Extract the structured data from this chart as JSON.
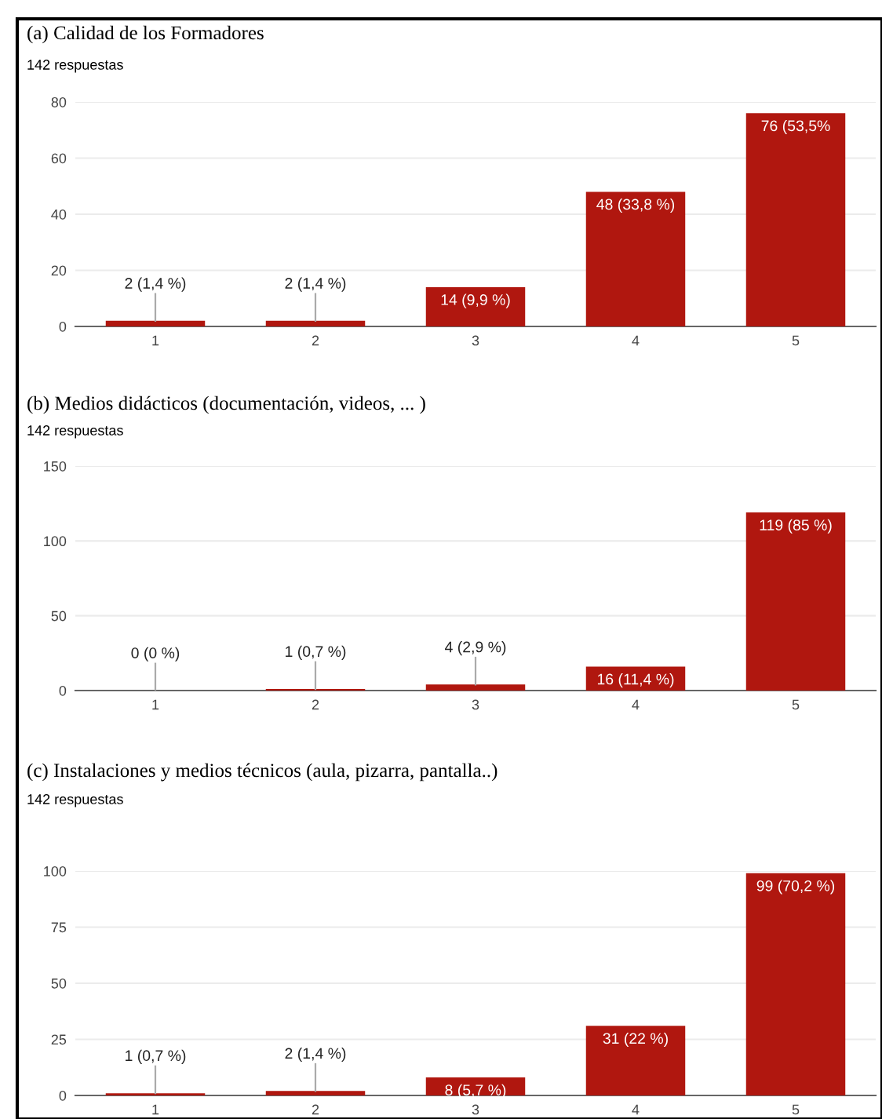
{
  "chart_data": [
    {
      "type": "bar",
      "title": "(a) Calidad de los Formadores",
      "subtitle": "142 respuestas",
      "categories": [
        "1",
        "2",
        "3",
        "4",
        "5"
      ],
      "values": [
        2,
        2,
        14,
        48,
        76
      ],
      "value_labels": [
        "2 (1,4 %)",
        "2 (1,4 %)",
        "14 (9,9 %)",
        "48 (33,8 %)",
        "76 (53,5%"
      ],
      "color": "#b0170f",
      "ylim": [
        0,
        80
      ],
      "yticks": [
        0,
        20,
        40,
        60,
        80
      ],
      "grid": "y"
    },
    {
      "type": "bar",
      "title": "(b) Medios didácticos (documentación, videos, ... )",
      "subtitle": "142 respuestas",
      "categories": [
        "1",
        "2",
        "3",
        "4",
        "5"
      ],
      "values": [
        0,
        1,
        4,
        16,
        119
      ],
      "value_labels": [
        "0 (0 %)",
        "1 (0,7 %)",
        "4 (2,9 %)",
        "16 (11,4 %)",
        "119 (85 %)"
      ],
      "color": "#b0170f",
      "ylim": [
        0,
        150
      ],
      "yticks": [
        0,
        50,
        100,
        150
      ],
      "grid": "y"
    },
    {
      "type": "bar",
      "title": "(c) Instalaciones y medios técnicos (aula, pizarra, pantalla..)",
      "subtitle": "142 respuestas",
      "categories": [
        "1",
        "2",
        "3",
        "4",
        "5"
      ],
      "values": [
        1,
        2,
        8,
        31,
        99
      ],
      "value_labels": [
        "1 (0,7 %)",
        "2 (1,4 %)",
        "8 (5,7 %)",
        "31 (22 %)",
        "99 (70,2 %)"
      ],
      "color": "#b0170f",
      "ylim": [
        0,
        100
      ],
      "yticks": [
        0,
        25,
        50,
        75,
        100
      ],
      "grid": "y"
    }
  ]
}
